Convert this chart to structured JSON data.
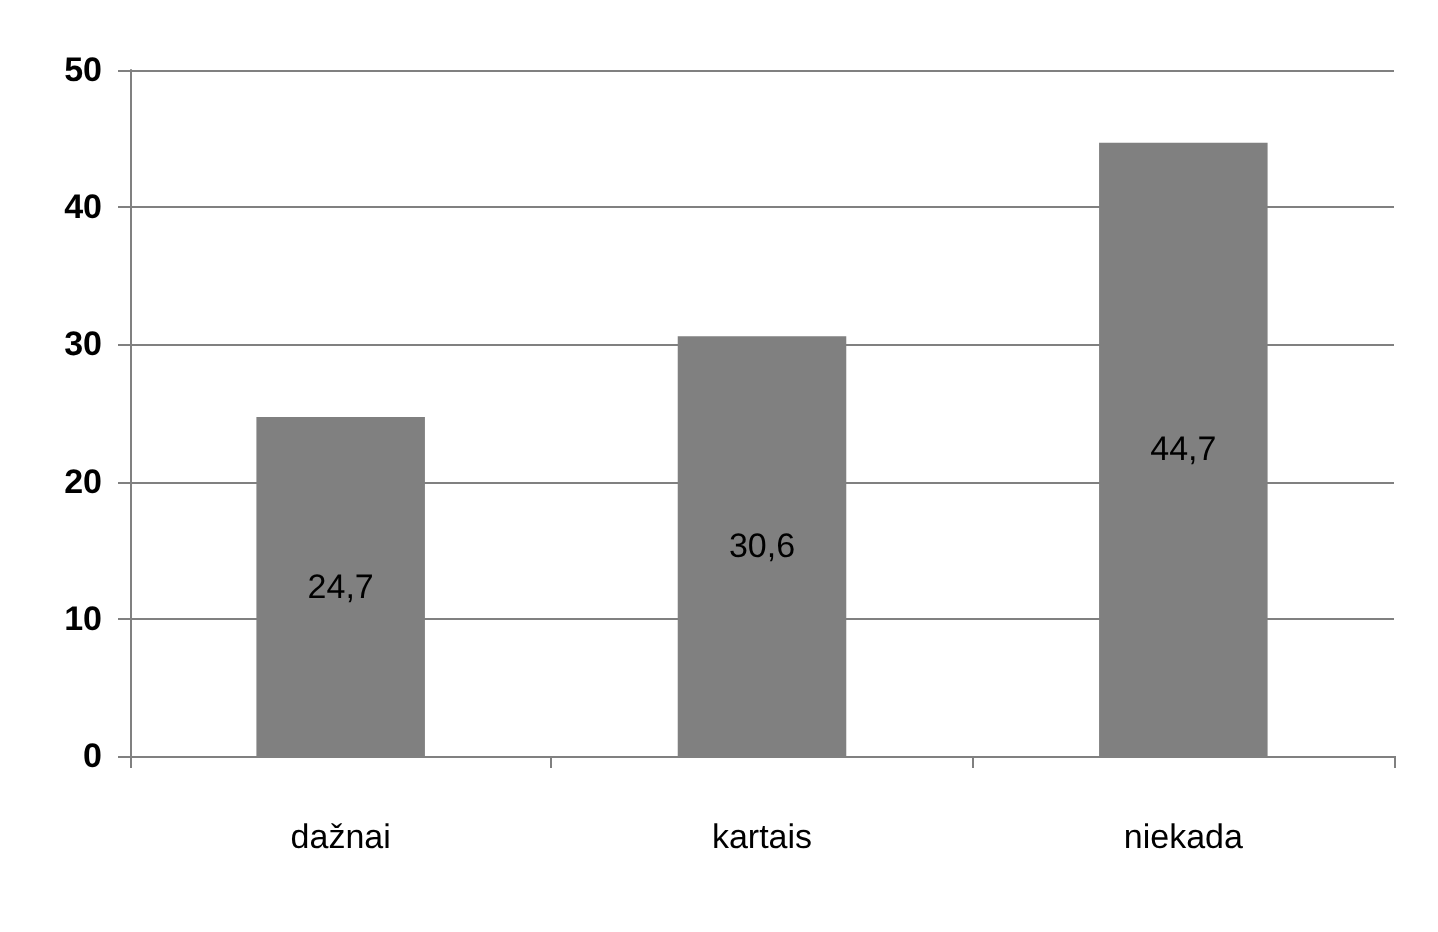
{
  "chart_data": {
    "type": "bar",
    "categories": [
      "dažnai",
      "kartais",
      "niekada"
    ],
    "values": [
      24.7,
      30.6,
      44.7
    ],
    "value_labels": [
      "24,7",
      "30,6",
      "44,7"
    ],
    "color": "#808080",
    "ylim": [
      0,
      50
    ],
    "yticks": [
      0,
      10,
      20,
      30,
      40,
      50
    ],
    "grid": "y"
  }
}
